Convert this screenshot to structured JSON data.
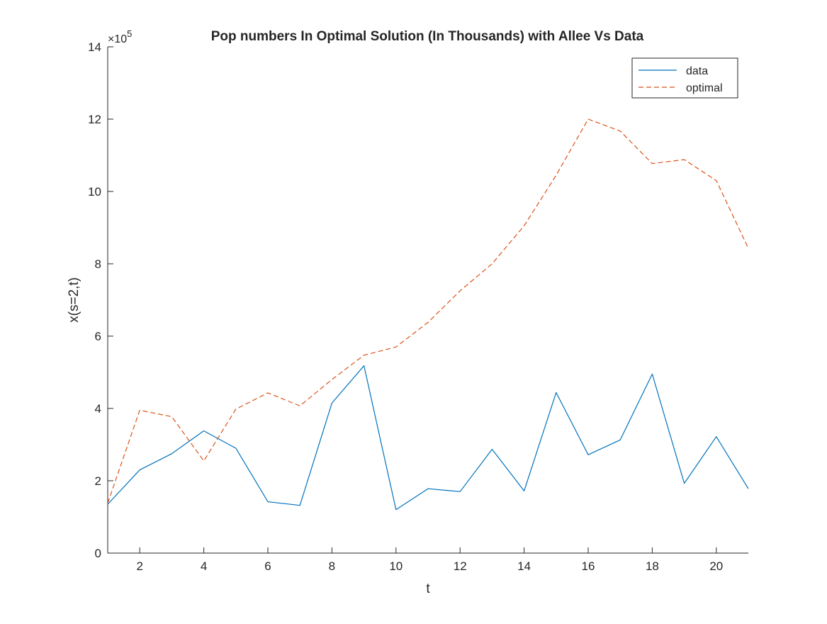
{
  "chart_data": {
    "type": "line",
    "title": "Pop numbers In Optimal Solution (In Thousands) with Allee Vs Data",
    "xlabel": "t",
    "ylabel": "x(s=2,t)",
    "y_exponent_label": "×10",
    "y_exponent_power": "5",
    "xlim": [
      1,
      21
    ],
    "ylim": [
      0,
      14
    ],
    "xticks": [
      2,
      4,
      6,
      8,
      10,
      12,
      14,
      16,
      18,
      20
    ],
    "yticks": [
      0,
      2,
      4,
      6,
      8,
      10,
      12,
      14
    ],
    "grid": false,
    "legend_position": "top-right",
    "x": [
      1,
      2,
      3,
      4,
      5,
      6,
      7,
      8,
      9,
      10,
      11,
      12,
      13,
      14,
      15,
      16,
      17,
      18,
      19,
      20,
      21
    ],
    "series": [
      {
        "name": "data",
        "color": "#0072BD",
        "style": "solid",
        "values": [
          1.35,
          2.3,
          2.75,
          3.38,
          2.9,
          1.42,
          1.32,
          4.15,
          5.18,
          1.2,
          1.78,
          1.7,
          2.87,
          1.72,
          4.44,
          2.72,
          3.13,
          4.95,
          1.93,
          3.22,
          1.78
        ]
      },
      {
        "name": "optimal",
        "color": "#D95319",
        "style": "dashed",
        "values": [
          1.38,
          3.95,
          3.77,
          2.55,
          3.98,
          4.43,
          4.07,
          4.8,
          5.47,
          5.7,
          6.38,
          7.25,
          8.0,
          9.05,
          10.45,
          12.0,
          11.67,
          10.77,
          10.88,
          10.3,
          8.43
        ]
      }
    ]
  }
}
